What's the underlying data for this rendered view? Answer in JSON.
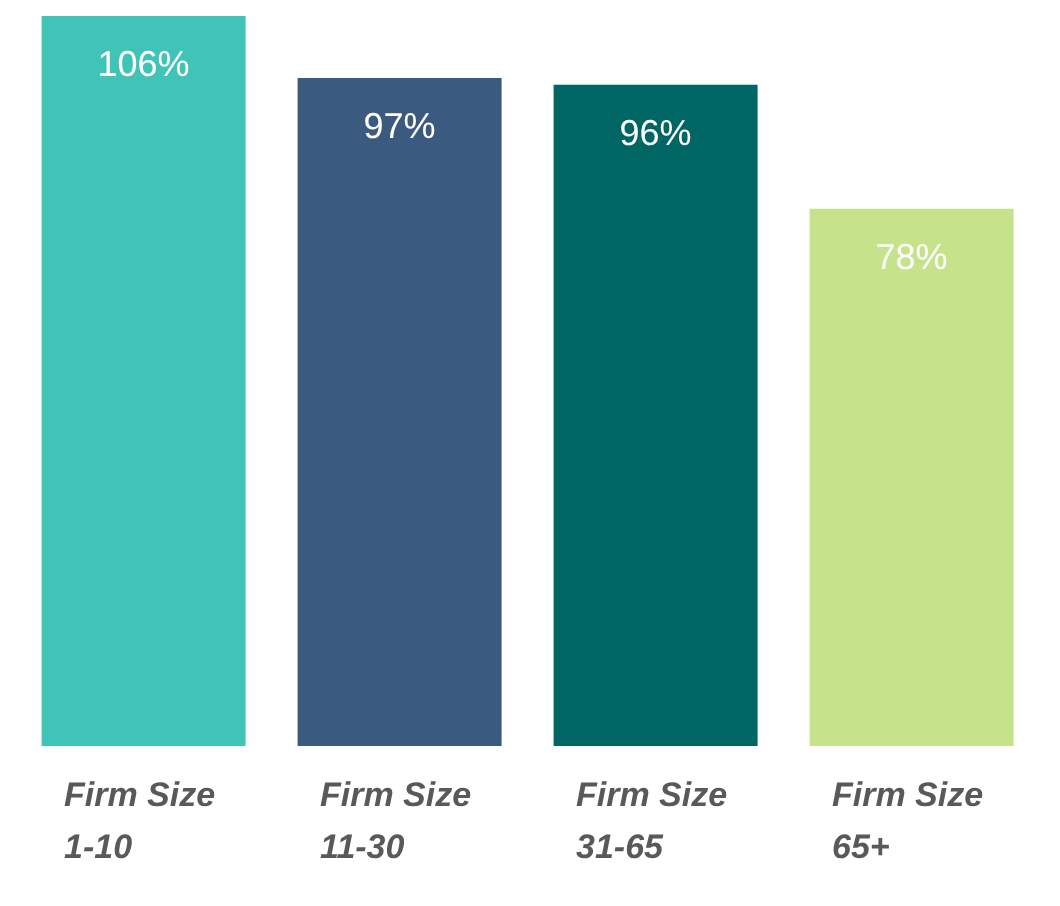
{
  "chart_data": {
    "type": "bar",
    "categories": [
      "Firm Size 1-10",
      "Firm Size 11-30",
      "Firm Size 31-65",
      "Firm Size 65+"
    ],
    "values": [
      106,
      97,
      96,
      78
    ],
    "colors": [
      "#40c4b8",
      "#3b5a80",
      "#006663",
      "#c6e38c"
    ],
    "value_labels": [
      "106%",
      "97%",
      "96%",
      "78%"
    ],
    "grid": false,
    "legend": false
  }
}
